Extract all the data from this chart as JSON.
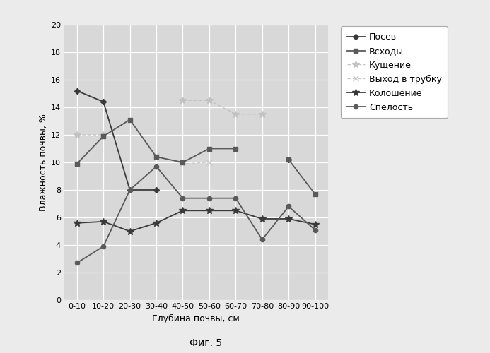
{
  "x_labels": [
    "0-10",
    "10-20",
    "20-30",
    "30-40",
    "40-50",
    "50-60",
    "60-70",
    "70-80",
    "80-90",
    "90-100"
  ],
  "posev": [
    15.2,
    14.4,
    8.0,
    8.0,
    null,
    null,
    null,
    null,
    10.2,
    null
  ],
  "vshody": [
    9.9,
    11.9,
    13.1,
    10.4,
    10.0,
    11.0,
    11.0,
    null,
    10.2,
    7.7
  ],
  "kushch": [
    12.0,
    12.0,
    null,
    null,
    14.5,
    14.5,
    13.5,
    13.5,
    null,
    null
  ],
  "vyhod": [
    null,
    null,
    null,
    10.5,
    9.9,
    10.0,
    null,
    null,
    null,
    null
  ],
  "koloshen": [
    5.6,
    5.7,
    5.0,
    5.6,
    6.5,
    6.5,
    6.5,
    5.9,
    5.9,
    5.5
  ],
  "spelost": [
    2.7,
    3.9,
    8.0,
    9.7,
    7.4,
    7.4,
    7.4,
    4.4,
    6.8,
    5.1
  ],
  "ylabel": "Влажность почвы, %",
  "xlabel": "Глубина почвы, см",
  "caption": "Фиг. 5",
  "ylim": [
    0,
    20
  ],
  "yticks": [
    0,
    2,
    4,
    6,
    8,
    10,
    12,
    14,
    16,
    18,
    20
  ],
  "bg_color": "#d8d8d8",
  "fig_bg": "#ebebeb",
  "legend_labels": [
    "Посев",
    "Всходы",
    "Кущение",
    "Выход в трубку",
    "Колошение",
    "Спелость"
  ]
}
